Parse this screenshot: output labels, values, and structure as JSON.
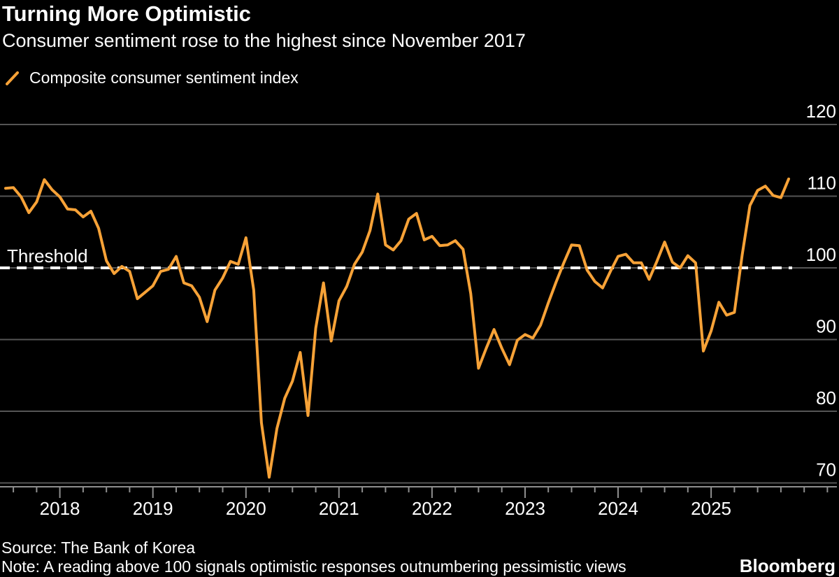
{
  "header": {
    "title": "Turning More Optimistic",
    "subtitle": "Consumer sentiment rose to the highest since November 2017"
  },
  "legend": {
    "label": "Composite consumer sentiment index"
  },
  "footer": {
    "source": "Source: The Bank of Korea",
    "note": "Note: A reading above 100 signals optimistic responses outnumbering pessimistic views",
    "brand": "Bloomberg"
  },
  "colors": {
    "background": "#000000",
    "line": "#F7A237",
    "grid": "#555555",
    "axis": "#8F8F8F",
    "text": "#FFFFFF",
    "threshold": "#FFFFFF"
  },
  "chart_data": {
    "type": "line",
    "title": "Turning More Optimistic",
    "subtitle": "Consumer sentiment rose to the highest since November 2017",
    "xlabel": "",
    "ylabel": "",
    "grid": "horizontal",
    "legend_position": "top-left",
    "y_ticks": [
      120,
      110,
      100,
      90,
      80,
      70
    ],
    "ylim": [
      66,
      122
    ],
    "x_ticks": {
      "years": [
        "2018",
        "2019",
        "2020",
        "2021",
        "2022",
        "2023",
        "2024",
        "2025"
      ]
    },
    "threshold": {
      "label": "Threshold",
      "value": 100
    },
    "series": [
      {
        "name": "Composite consumer sentiment index",
        "color": "#F7A237",
        "frequency": "monthly",
        "start": "2017-06",
        "end": "2025-11",
        "values": [
          111.1,
          111.2,
          109.9,
          107.7,
          109.2,
          112.3,
          110.9,
          109.9,
          108.2,
          108.1,
          107.1,
          107.9,
          105.5,
          101.0,
          99.2,
          100.2,
          99.5,
          95.7,
          96.6,
          97.5,
          99.5,
          99.8,
          101.6,
          97.9,
          97.5,
          95.9,
          92.5,
          96.9,
          98.6,
          100.9,
          100.5,
          104.2,
          96.9,
          78.4,
          70.8,
          77.6,
          81.8,
          84.2,
          88.2,
          79.4,
          91.6,
          97.9,
          89.8,
          95.4,
          97.4,
          100.5,
          102.2,
          105.2,
          110.3,
          103.2,
          102.5,
          103.8,
          106.8,
          107.6,
          103.9,
          104.4,
          103.1,
          103.2,
          103.8,
          102.6,
          96.4,
          86.0,
          88.8,
          91.4,
          88.8,
          86.5,
          89.9,
          90.7,
          90.2,
          92.0,
          95.1,
          98.0,
          100.7,
          103.2,
          103.1,
          99.7,
          98.1,
          97.2,
          99.5,
          101.6,
          101.9,
          100.7,
          100.7,
          98.4,
          100.9,
          103.6,
          100.8,
          100.0,
          101.7,
          100.7,
          88.4,
          91.2,
          95.2,
          93.4,
          93.8,
          101.8,
          108.7,
          110.8,
          111.4,
          110.1,
          109.8,
          112.4
        ]
      }
    ]
  }
}
